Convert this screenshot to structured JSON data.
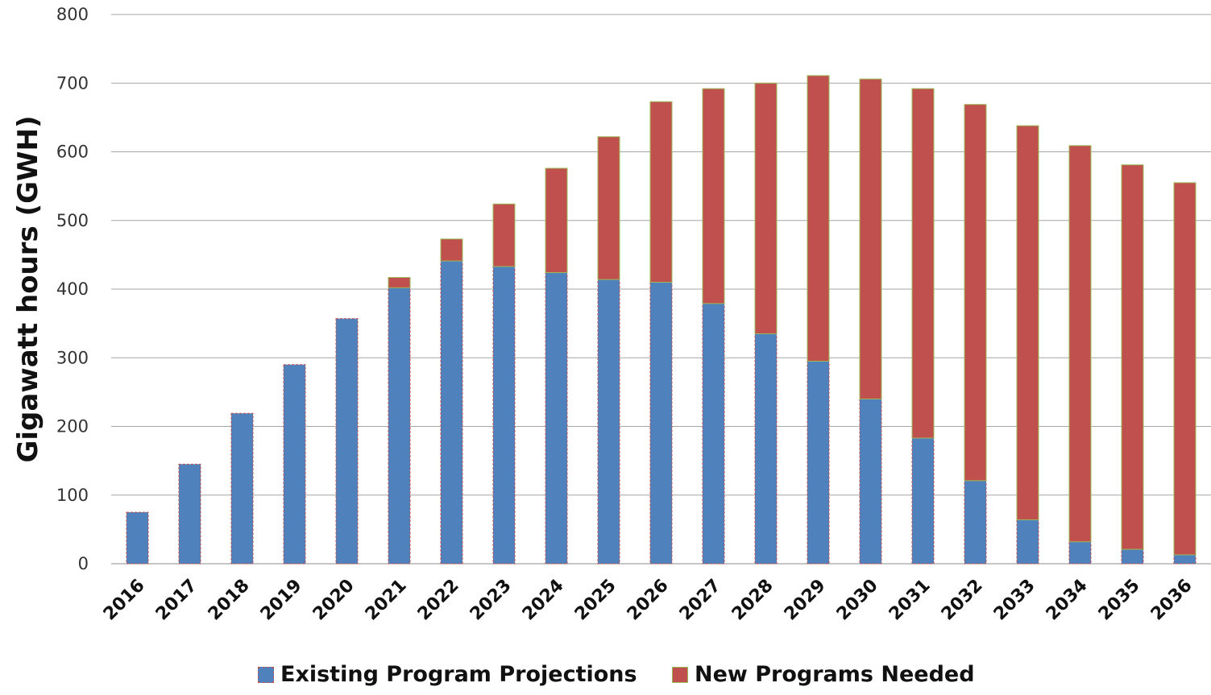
{
  "chart_data": {
    "type": "bar",
    "stacked": true,
    "ylabel": "Gigawatt hours (GWH)",
    "ylim": [
      0,
      800
    ],
    "yticks": [
      "0",
      "100",
      "200",
      "300",
      "400",
      "500",
      "600",
      "700",
      "800"
    ],
    "grid": true,
    "legend_position": "bottom",
    "categories": [
      "2016",
      "2017",
      "2018",
      "2019",
      "2020",
      "2021",
      "2022",
      "2023",
      "2024",
      "2025",
      "2026",
      "2027",
      "2028",
      "2029",
      "2030",
      "2031",
      "2032",
      "2033",
      "2034",
      "2035",
      "2036"
    ],
    "series": [
      {
        "name": "Existing Program Projections",
        "color": "#4F81BD",
        "outline": "#C0504D",
        "values": [
          75,
          145,
          219,
          290,
          357,
          402,
          441,
          433,
          424,
          414,
          410,
          379,
          335,
          295,
          240,
          183,
          121,
          64,
          32,
          21,
          13
        ]
      },
      {
        "name": "New Programs Needed",
        "color": "#C0504D",
        "outline": "#9BBB59",
        "values": [
          0,
          0,
          0,
          0,
          0,
          15,
          32,
          91,
          152,
          208,
          263,
          313,
          365,
          416,
          466,
          509,
          548,
          574,
          577,
          560,
          542
        ]
      }
    ]
  }
}
